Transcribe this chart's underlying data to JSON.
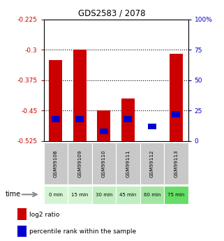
{
  "title": "GDS2583 / 2078",
  "samples": [
    "GSM99108",
    "GSM99109",
    "GSM99110",
    "GSM99111",
    "GSM99112",
    "GSM99113"
  ],
  "time_labels": [
    "0 min",
    "15 min",
    "30 min",
    "45 min",
    "60 min",
    "75 min"
  ],
  "log2_values": [
    -0.325,
    -0.3,
    -0.45,
    -0.42,
    -0.525,
    -0.31
  ],
  "log2_bottom": [
    -0.525,
    -0.525,
    -0.525,
    -0.525,
    -0.525,
    -0.525
  ],
  "percentile_values": [
    18,
    18,
    8,
    18,
    12,
    22
  ],
  "ylim_left": [
    -0.525,
    -0.225
  ],
  "ylim_right": [
    0,
    100
  ],
  "yticks_left": [
    -0.525,
    -0.45,
    -0.375,
    -0.3,
    -0.225
  ],
  "yticks_right": [
    0,
    25,
    50,
    75,
    100
  ],
  "ytick_right_labels": [
    "0",
    "25",
    "50",
    "75",
    "100%"
  ],
  "bar_color_red": "#cc0000",
  "bar_color_blue": "#0000cc",
  "bg_color_plot": "#ffffff",
  "sample_bg": "#c8c8c8",
  "time_bg_colors": [
    "#d4f5d4",
    "#d4f5d4",
    "#c0eec0",
    "#c0eec0",
    "#a0e6a0",
    "#66dd66"
  ],
  "left_tick_color": "#cc0000",
  "right_tick_color": "#0000cc",
  "bar_width": 0.55,
  "blue_bar_width": 0.35
}
